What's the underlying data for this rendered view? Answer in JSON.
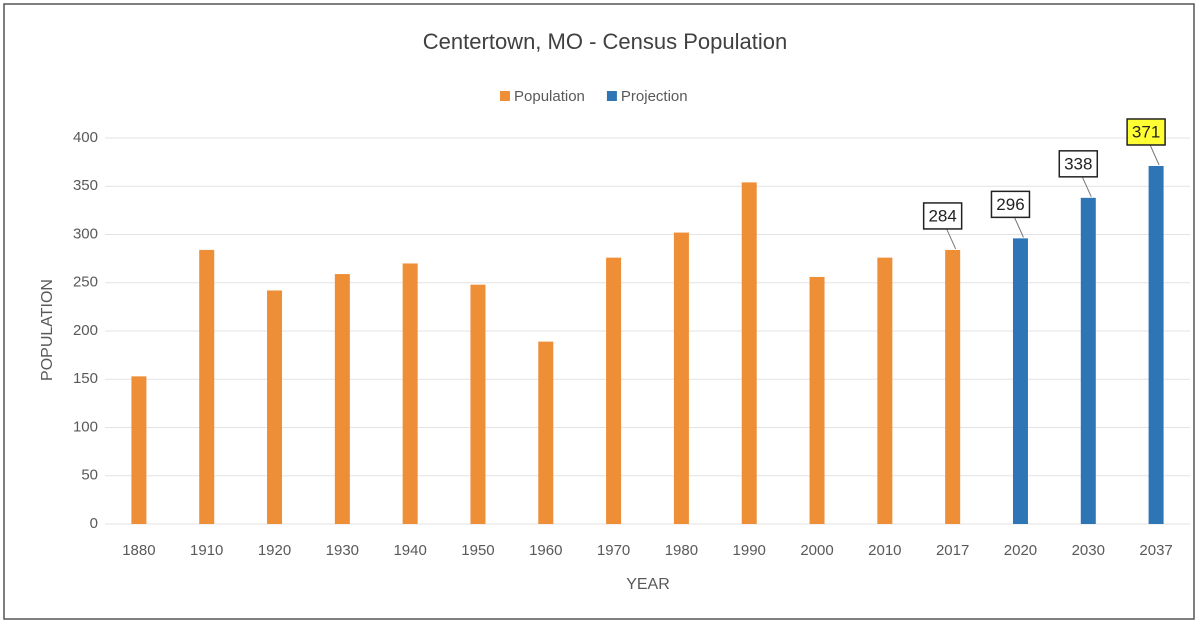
{
  "chart_data": {
    "type": "bar",
    "title": "Centertown, MO - Census Population",
    "xlabel": "YEAR",
    "ylabel": "POPULATION",
    "categories": [
      "1880",
      "1910",
      "1920",
      "1930",
      "1940",
      "1950",
      "1960",
      "1970",
      "1980",
      "1990",
      "2000",
      "2010",
      "2017",
      "2020",
      "2030",
      "2037"
    ],
    "series": [
      {
        "name": "Population",
        "color": "#ee8e36",
        "values": [
          153,
          284,
          242,
          259,
          270,
          248,
          189,
          276,
          302,
          354,
          256,
          276,
          284,
          null,
          null,
          null
        ],
        "value_labels": [
          null,
          null,
          null,
          null,
          null,
          null,
          null,
          null,
          null,
          null,
          null,
          null,
          "284",
          null,
          null,
          null
        ],
        "label_fill": [
          null,
          null,
          null,
          null,
          null,
          null,
          null,
          null,
          null,
          null,
          null,
          null,
          "#ffffff",
          null,
          null,
          null
        ]
      },
      {
        "name": "Projection",
        "color": "#2e75b6",
        "values": [
          null,
          null,
          null,
          null,
          null,
          null,
          null,
          null,
          null,
          null,
          null,
          null,
          null,
          296,
          338,
          371
        ],
        "value_labels": [
          null,
          null,
          null,
          null,
          null,
          null,
          null,
          null,
          null,
          null,
          null,
          null,
          null,
          "296",
          "338",
          "371"
        ],
        "label_fill": [
          null,
          null,
          null,
          null,
          null,
          null,
          null,
          null,
          null,
          null,
          null,
          null,
          null,
          "#ffffff",
          "#ffffff",
          "#ffff33"
        ]
      }
    ],
    "ylim": [
      0,
      400
    ],
    "yticks": [
      0,
      50,
      100,
      150,
      200,
      250,
      300,
      350,
      400
    ],
    "grid": true,
    "legend": "top"
  }
}
